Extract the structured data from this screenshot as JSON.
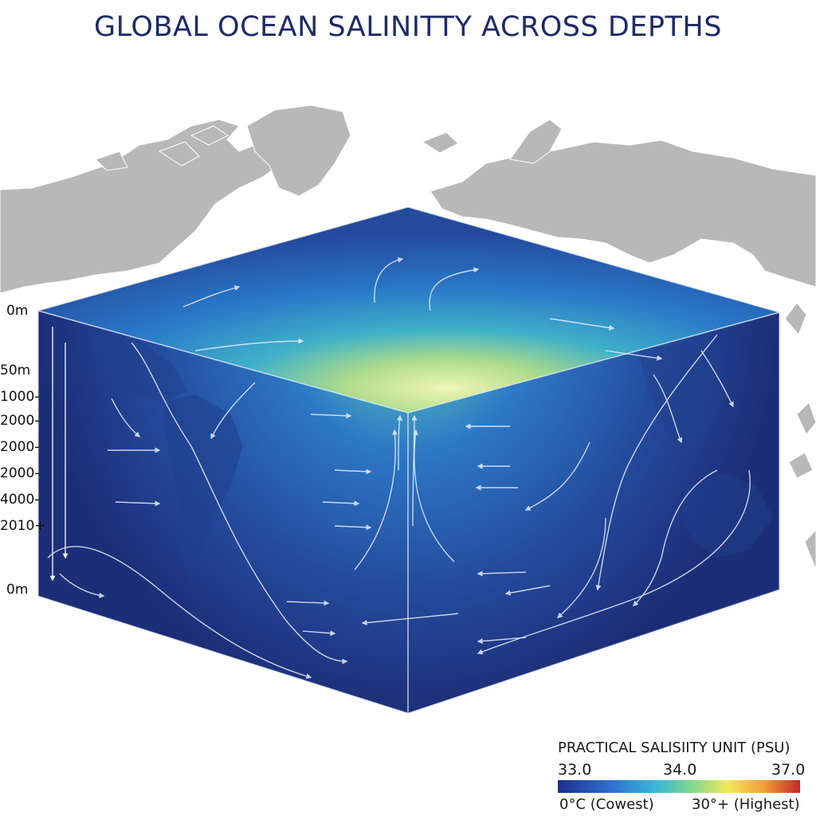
{
  "title": "GLOBAL OCEAN SALINITTY ACROSS DEPTHS",
  "depth_axis": {
    "top_label": "0m",
    "labels": [
      "50m",
      "1000-",
      "2000-",
      "2000-",
      "2000-",
      "4000-",
      "2010+"
    ],
    "bottom_label": "0m"
  },
  "legend": {
    "title": "PRACTICAL SALISIITY UNIT (PSU)",
    "ticks": [
      "33.0",
      "34.0",
      "37.0"
    ],
    "low_label": "0°C (Cowest)",
    "high_label": "30°+ (Highest)"
  },
  "colors": {
    "deep": "#1c2a78",
    "mid": "#2f6cc8",
    "surface_center": "#f0f5b0",
    "land": "#b5b5b5",
    "title": "#1f2b66"
  },
  "icons": [
    "current-arrow-icon"
  ]
}
